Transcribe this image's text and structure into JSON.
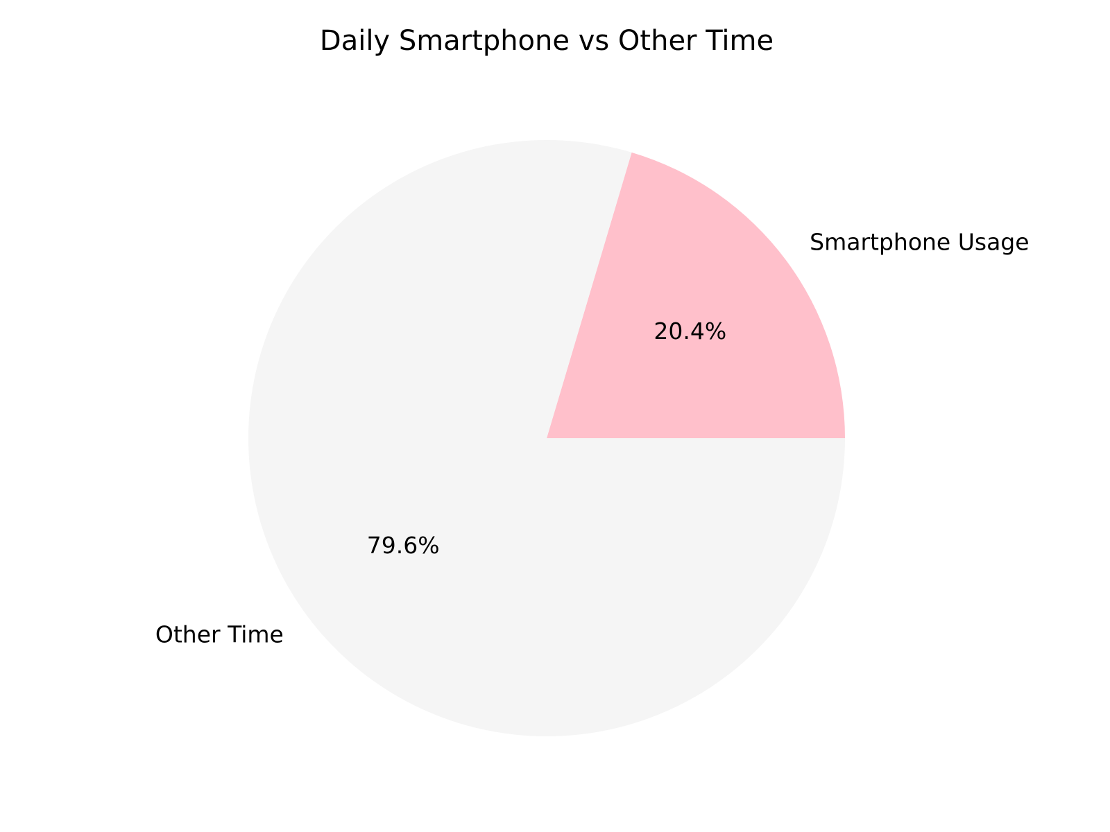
{
  "chart_data": {
    "type": "pie",
    "title": "Daily Smartphone vs Other Time",
    "slices": [
      {
        "label": "Smartphone Usage",
        "value": 20.4,
        "pct_label": "20.4%",
        "color": "#ffc0cb"
      },
      {
        "label": "Other Time",
        "value": 79.6,
        "pct_label": "79.6%",
        "color": "#f5f5f5"
      }
    ],
    "start_angle": "0 degrees (3 o'clock), counter-clockwise",
    "legend": "none"
  }
}
